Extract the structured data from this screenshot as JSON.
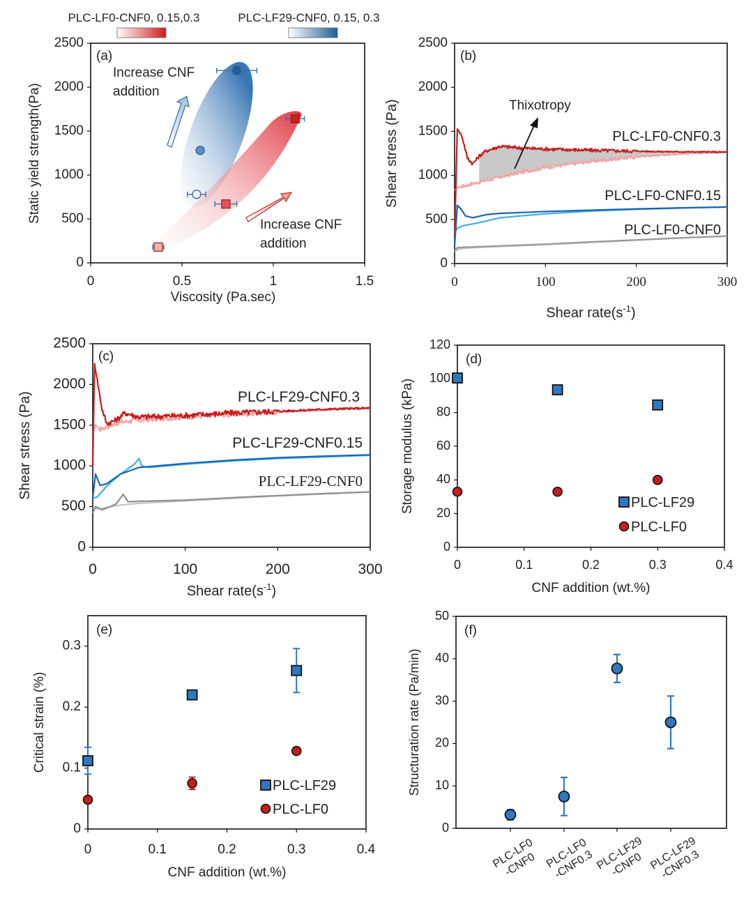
{
  "chart_data": [
    {
      "panel": "a",
      "type": "scatter",
      "tag": "(a)",
      "xlabel": "Viscosity (Pa.sec)",
      "ylabel": "Static yield strength(Pa)",
      "xlim": [
        0,
        1.5
      ],
      "ylim": [
        0,
        2500
      ],
      "xticks": [
        "0",
        "0.5",
        "1",
        "1.5"
      ],
      "yticks": [
        "0",
        "500",
        "1000",
        "1500",
        "2000",
        "2500"
      ],
      "legend": [
        {
          "label": "PLC-LF0-CNF0, 0.15,0.3",
          "color_from": "#ffffff",
          "color_to": "#d01c1c"
        },
        {
          "label": "PLC-LF29-CNF0, 0.15, 0.3",
          "color_from": "#ffffff",
          "color_to": "#1f5f95"
        }
      ],
      "annotations": {
        "blue_line1": "Increase CNF",
        "blue_line2": "addition",
        "red_line1": "Increase CNF",
        "red_line2": "addition"
      },
      "series": [
        {
          "name": "PLC-LF29",
          "marker": "circle",
          "points": [
            {
              "x": 0.58,
              "y": 780,
              "xerr": 0.05,
              "color": "#eef4fa"
            },
            {
              "x": 0.6,
              "y": 1280,
              "xerr": 0,
              "color": "#5e90c8"
            },
            {
              "x": 0.8,
              "y": 2190,
              "xerr": 0.11,
              "color": "#1f5f95"
            }
          ]
        },
        {
          "name": "PLC-LF0",
          "marker": "square",
          "points": [
            {
              "x": 0.37,
              "y": 180,
              "xerr": 0.03,
              "color": "#f2b2ad"
            },
            {
              "x": 0.74,
              "y": 670,
              "xerr": 0.06,
              "color": "#e6505a"
            },
            {
              "x": 1.12,
              "y": 1640,
              "xerr": 0.05,
              "color": "#d01c1c"
            }
          ]
        }
      ]
    },
    {
      "panel": "b",
      "type": "line",
      "tag": "(b)",
      "xlabel": "Shear rate(s",
      "xlabel_sup": "-1",
      "xlabel_end": ")",
      "ylabel": "Shear stress (Pa)",
      "xlim": [
        0,
        300
      ],
      "ylim": [
        0,
        2500
      ],
      "xticks": [
        "0",
        "100",
        "200",
        "300"
      ],
      "yticks": [
        "0",
        "500",
        "1000",
        "1500",
        "2000",
        "2500"
      ],
      "annotation": "Thixotropy",
      "series": [
        {
          "name": "PLC-LF0-CNF0.3",
          "kind": "up",
          "color": "#f4a3a3",
          "x": [
            0,
            2,
            10,
            25,
            50,
            75,
            100,
            150,
            200,
            250,
            300
          ],
          "y": [
            820,
            860,
            880,
            920,
            980,
            1040,
            1090,
            1160,
            1210,
            1245,
            1265
          ]
        },
        {
          "name": "PLC-LF0-CNF0.3",
          "kind": "down",
          "color": "#c41e1e",
          "x": [
            0,
            3,
            8,
            14,
            20,
            27,
            35,
            50,
            75,
            100,
            150,
            200,
            250,
            300
          ],
          "y": [
            300,
            1530,
            1450,
            1200,
            1130,
            1220,
            1280,
            1330,
            1310,
            1300,
            1285,
            1275,
            1268,
            1265
          ]
        },
        {
          "name": "PLC-LF0-CNF0.15",
          "kind": "up",
          "color": "#3fb0e4",
          "x": [
            0,
            3,
            10,
            25,
            50,
            100,
            150,
            200,
            250,
            300
          ],
          "y": [
            350,
            400,
            430,
            460,
            520,
            565,
            595,
            615,
            630,
            642
          ]
        },
        {
          "name": "PLC-LF0-CNF0.15",
          "kind": "down",
          "color": "#1c64b4",
          "x": [
            0,
            3,
            7,
            12,
            20,
            35,
            50,
            100,
            150,
            200,
            250,
            300
          ],
          "y": [
            200,
            660,
            620,
            540,
            520,
            555,
            570,
            590,
            605,
            620,
            632,
            642
          ]
        },
        {
          "name": "PLC-LF0-CNF0",
          "kind": "up",
          "color": "#bdbdbd",
          "x": [
            0,
            3,
            10,
            50,
            100,
            150,
            200,
            250,
            300
          ],
          "y": [
            130,
            160,
            175,
            195,
            215,
            240,
            265,
            290,
            310
          ]
        },
        {
          "name": "PLC-LF0-CNF0",
          "kind": "down",
          "color": "#9a9a9a",
          "x": [
            0,
            3,
            10,
            50,
            100,
            150,
            200,
            250,
            300
          ],
          "y": [
            150,
            180,
            185,
            200,
            220,
            245,
            268,
            292,
            312
          ]
        }
      ],
      "labels": [
        "PLC-LF0-CNF0.3",
        "PLC-LF0-CNF0.15",
        "PLC-LF0-CNF0"
      ]
    },
    {
      "panel": "c",
      "type": "line",
      "tag": "(c)",
      "xlabel": "Shear rate(s",
      "xlabel_sup": "-1",
      "xlabel_end": ")",
      "ylabel": "Shear stress (Pa)",
      "xlim": [
        0,
        300
      ],
      "ylim": [
        0,
        2500
      ],
      "xticks": [
        "0",
        "100",
        "200",
        "300"
      ],
      "yticks": [
        "0",
        "500",
        "1000",
        "1500",
        "2000",
        "2500"
      ],
      "series": [
        {
          "name": "PLC-LF29-CNF0.3",
          "kind": "up",
          "color": "#f4a3a3",
          "x": [
            0,
            3,
            8,
            15,
            30,
            50,
            100,
            150,
            200,
            250,
            300
          ],
          "y": [
            1400,
            1500,
            1450,
            1480,
            1540,
            1560,
            1600,
            1630,
            1660,
            1690,
            1710
          ]
        },
        {
          "name": "PLC-LF29-CNF0.3",
          "kind": "down",
          "color": "#c41e1e",
          "x": [
            0,
            2,
            5,
            10,
            15,
            25,
            35,
            50,
            100,
            150,
            200,
            250,
            300
          ],
          "y": [
            1000,
            2250,
            2050,
            1700,
            1520,
            1560,
            1650,
            1600,
            1620,
            1650,
            1670,
            1695,
            1710
          ]
        },
        {
          "name": "PLC-LF29-CNF0.15",
          "kind": "up",
          "color": "#3fb0e4",
          "x": [
            0,
            5,
            15,
            30,
            45,
            50,
            53,
            60,
            100,
            150,
            200,
            250,
            300
          ],
          "y": [
            600,
            620,
            750,
            900,
            1020,
            1090,
            1000,
            980,
            1020,
            1060,
            1090,
            1110,
            1130
          ]
        },
        {
          "name": "PLC-LF29-CNF0.15",
          "kind": "down",
          "color": "#1c64b4",
          "x": [
            0,
            3,
            8,
            15,
            30,
            50,
            100,
            150,
            200,
            250,
            300
          ],
          "y": [
            600,
            900,
            760,
            780,
            900,
            980,
            1030,
            1070,
            1100,
            1120,
            1135
          ]
        },
        {
          "name": "PLC-LF29-CNF0",
          "kind": "up",
          "color": "#c4c4c4",
          "x": [
            0,
            5,
            15,
            30,
            50,
            100,
            150,
            200,
            250,
            300
          ],
          "y": [
            480,
            470,
            490,
            520,
            540,
            570,
            600,
            630,
            655,
            680
          ]
        },
        {
          "name": "PLC-LF29-CNF0",
          "kind": "down",
          "color": "#8f8f8f",
          "x": [
            0,
            3,
            10,
            25,
            33,
            38,
            50,
            100,
            150,
            200,
            250,
            300
          ],
          "y": [
            420,
            500,
            460,
            530,
            650,
            560,
            565,
            580,
            610,
            635,
            660,
            680
          ]
        }
      ],
      "labels": [
        "PLC-LF29-CNF0.3",
        "PLC-LF29-CNF0.15",
        "PLC-LF29-CNF0"
      ]
    },
    {
      "panel": "d",
      "type": "scatter",
      "tag": "(d)",
      "xlabel": "CNF addition (wt.%)",
      "ylabel": "Storage modulus (kPa)",
      "xlim": [
        0,
        0.4
      ],
      "ylim": [
        0,
        120
      ],
      "xticks": [
        "0",
        "0.1",
        "0.2",
        "0.3",
        "0.4"
      ],
      "yticks": [
        "0",
        "20",
        "40",
        "60",
        "80",
        "100",
        "120"
      ],
      "legend": [
        "PLC-LF29",
        "PLC-LF0"
      ],
      "series": [
        {
          "name": "PLC-LF29",
          "marker": "square",
          "color": "#2e78c0",
          "x": [
            0,
            0.15,
            0.3
          ],
          "y": [
            100.5,
            93.5,
            84.5
          ],
          "yerr": [
            0,
            0,
            1.5
          ]
        },
        {
          "name": "PLC-LF0",
          "marker": "circle",
          "color": "#c41e1e",
          "x": [
            0,
            0.15,
            0.3
          ],
          "y": [
            33,
            33,
            40
          ],
          "yerr": [
            0,
            0,
            0
          ]
        }
      ]
    },
    {
      "panel": "e",
      "type": "scatter",
      "tag": "(e)",
      "xlabel": "CNF addition (wt.%)",
      "ylabel": "Critical strain (%)",
      "xlim": [
        0,
        0.4
      ],
      "ylim": [
        0,
        0.35
      ],
      "xticks": [
        "0",
        "0.1",
        "0.2",
        "0.3",
        "0.4"
      ],
      "yticks": [
        "0",
        "0.1",
        "0.2",
        "0.3"
      ],
      "ytick_values": [
        0,
        0.1,
        0.2,
        0.3
      ],
      "legend": [
        "PLC-LF29",
        "PLC-LF0"
      ],
      "series": [
        {
          "name": "PLC-LF29",
          "marker": "square",
          "color": "#2e78c0",
          "x": [
            0,
            0.15,
            0.3
          ],
          "y": [
            0.112,
            0.22,
            0.26
          ],
          "yerr": [
            0.022,
            0,
            0.036
          ]
        },
        {
          "name": "PLC-LF0",
          "marker": "circle",
          "color": "#c41e1e",
          "x": [
            0,
            0.15,
            0.3
          ],
          "y": [
            0.048,
            0.075,
            0.128
          ],
          "yerr": [
            0,
            0.01,
            0
          ]
        }
      ]
    },
    {
      "panel": "f",
      "type": "scatter",
      "tag": "(f)",
      "xlabel": "",
      "ylabel": "Structuration rate (Pa/min)",
      "ylim": [
        0,
        50
      ],
      "yticks": [
        "0",
        "10",
        "20",
        "30",
        "40",
        "50"
      ],
      "categories": [
        {
          "line1": "PLC-LF0",
          "line2": "-CNF0"
        },
        {
          "line1": "PLC-LF0",
          "line2": "-CNF0.3"
        },
        {
          "line1": "PLC-LF29",
          "line2": "-CNF0"
        },
        {
          "line1": "PLC-LF29",
          "line2": "-CNF0.3"
        }
      ],
      "series": [
        {
          "name": "Structuration rate",
          "marker": "circle",
          "color": "#2e78c0",
          "values": [
            3.2,
            7.5,
            37.7,
            25
          ],
          "yerr": [
            1.2,
            4.5,
            3.3,
            6.2
          ]
        }
      ]
    }
  ]
}
